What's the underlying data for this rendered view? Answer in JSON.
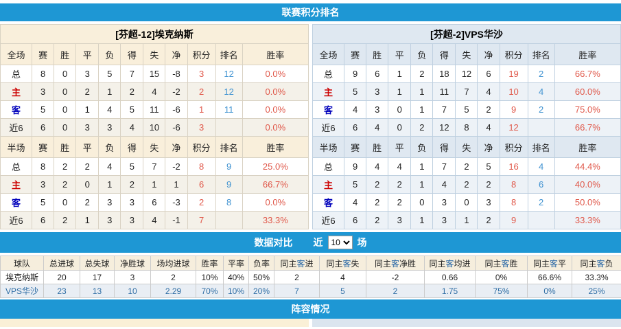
{
  "page": {
    "section1_title": "联赛积分排名",
    "section3_title": "阵容情况"
  },
  "colors": {
    "accent_blue": "#1e97d4",
    "points_red": "#e0584a",
    "rank_blue": "#4193d1",
    "home_red": "#cc0000",
    "away_blue": "#0000bb",
    "compare_alt_text": "#2e6da4"
  },
  "standings": {
    "columns": [
      "赛",
      "胜",
      "平",
      "负",
      "得",
      "失",
      "净",
      "积分",
      "排名",
      "胜率"
    ],
    "teams": [
      {
        "title": "[芬超-12]埃克纳斯",
        "theme": "warm",
        "sections": [
          {
            "label": "全场",
            "rows": [
              {
                "label": "总",
                "type": "total",
                "stats": [
                  "8",
                  "0",
                  "3",
                  "5",
                  "7",
                  "15",
                  "-8"
                ],
                "points": "3",
                "rank": "12",
                "rate": "0.0%"
              },
              {
                "label": "主",
                "type": "home",
                "stats": [
                  "3",
                  "0",
                  "2",
                  "1",
                  "2",
                  "4",
                  "-2"
                ],
                "points": "2",
                "rank": "12",
                "rate": "0.0%"
              },
              {
                "label": "客",
                "type": "away",
                "stats": [
                  "5",
                  "0",
                  "1",
                  "4",
                  "5",
                  "11",
                  "-6"
                ],
                "points": "1",
                "rank": "11",
                "rate": "0.0%"
              },
              {
                "label": "近6",
                "type": "recent",
                "stats": [
                  "6",
                  "0",
                  "3",
                  "3",
                  "4",
                  "10",
                  "-6"
                ],
                "points": "3",
                "rank": "",
                "rate": "0.0%"
              }
            ]
          },
          {
            "label": "半场",
            "rows": [
              {
                "label": "总",
                "type": "total",
                "stats": [
                  "8",
                  "2",
                  "2",
                  "4",
                  "5",
                  "7",
                  "-2"
                ],
                "points": "8",
                "rank": "9",
                "rate": "25.0%"
              },
              {
                "label": "主",
                "type": "home",
                "stats": [
                  "3",
                  "2",
                  "0",
                  "1",
                  "2",
                  "1",
                  "1"
                ],
                "points": "6",
                "rank": "9",
                "rate": "66.7%"
              },
              {
                "label": "客",
                "type": "away",
                "stats": [
                  "5",
                  "0",
                  "2",
                  "3",
                  "3",
                  "6",
                  "-3"
                ],
                "points": "2",
                "rank": "8",
                "rate": "0.0%"
              },
              {
                "label": "近6",
                "type": "recent",
                "stats": [
                  "6",
                  "2",
                  "1",
                  "3",
                  "3",
                  "4",
                  "-1"
                ],
                "points": "7",
                "rank": "",
                "rate": "33.3%"
              }
            ]
          }
        ]
      },
      {
        "title": "[芬超-2]VPS华沙",
        "theme": "cool",
        "sections": [
          {
            "label": "全场",
            "rows": [
              {
                "label": "总",
                "type": "total",
                "stats": [
                  "9",
                  "6",
                  "1",
                  "2",
                  "18",
                  "12",
                  "6"
                ],
                "points": "19",
                "rank": "2",
                "rate": "66.7%"
              },
              {
                "label": "主",
                "type": "home",
                "stats": [
                  "5",
                  "3",
                  "1",
                  "1",
                  "11",
                  "7",
                  "4"
                ],
                "points": "10",
                "rank": "4",
                "rate": "60.0%"
              },
              {
                "label": "客",
                "type": "away",
                "stats": [
                  "4",
                  "3",
                  "0",
                  "1",
                  "7",
                  "5",
                  "2"
                ],
                "points": "9",
                "rank": "2",
                "rate": "75.0%"
              },
              {
                "label": "近6",
                "type": "recent",
                "stats": [
                  "6",
                  "4",
                  "0",
                  "2",
                  "12",
                  "8",
                  "4"
                ],
                "points": "12",
                "rank": "",
                "rate": "66.7%"
              }
            ]
          },
          {
            "label": "半场",
            "rows": [
              {
                "label": "总",
                "type": "total",
                "stats": [
                  "9",
                  "4",
                  "4",
                  "1",
                  "7",
                  "2",
                  "5"
                ],
                "points": "16",
                "rank": "4",
                "rate": "44.4%"
              },
              {
                "label": "主",
                "type": "home",
                "stats": [
                  "5",
                  "2",
                  "2",
                  "1",
                  "4",
                  "2",
                  "2"
                ],
                "points": "8",
                "rank": "6",
                "rate": "40.0%"
              },
              {
                "label": "客",
                "type": "away",
                "stats": [
                  "4",
                  "2",
                  "2",
                  "0",
                  "3",
                  "0",
                  "3"
                ],
                "points": "8",
                "rank": "2",
                "rate": "50.0%"
              },
              {
                "label": "近6",
                "type": "recent",
                "stats": [
                  "6",
                  "2",
                  "3",
                  "1",
                  "3",
                  "1",
                  "2"
                ],
                "points": "9",
                "rank": "",
                "rate": "33.3%"
              }
            ]
          }
        ]
      }
    ]
  },
  "compare": {
    "bar_title": "数据对比",
    "near_label": "近",
    "games_label": "场",
    "select_value": "10",
    "highlight_char": "客",
    "highlight_color": "#2464a4",
    "headers": [
      "球队",
      "总进球",
      "总失球",
      "净胜球",
      "场均进球",
      "胜率",
      "平率",
      "负率",
      "同主客进",
      "同主客失",
      "同主客净胜",
      "同主客均进",
      "同主客胜",
      "同主客平",
      "同主客负"
    ],
    "rows": [
      {
        "name": "埃克纳斯",
        "values": [
          "20",
          "17",
          "3",
          "2",
          "10%",
          "40%",
          "50%",
          "2",
          "4",
          "-2",
          "0.66",
          "0%",
          "66.6%",
          "33.3%"
        ]
      },
      {
        "name": "VPS华沙",
        "values": [
          "23",
          "13",
          "10",
          "2.29",
          "70%",
          "10%",
          "20%",
          "7",
          "5",
          "2",
          "1.75",
          "75%",
          "0%",
          "25%"
        ]
      }
    ]
  }
}
